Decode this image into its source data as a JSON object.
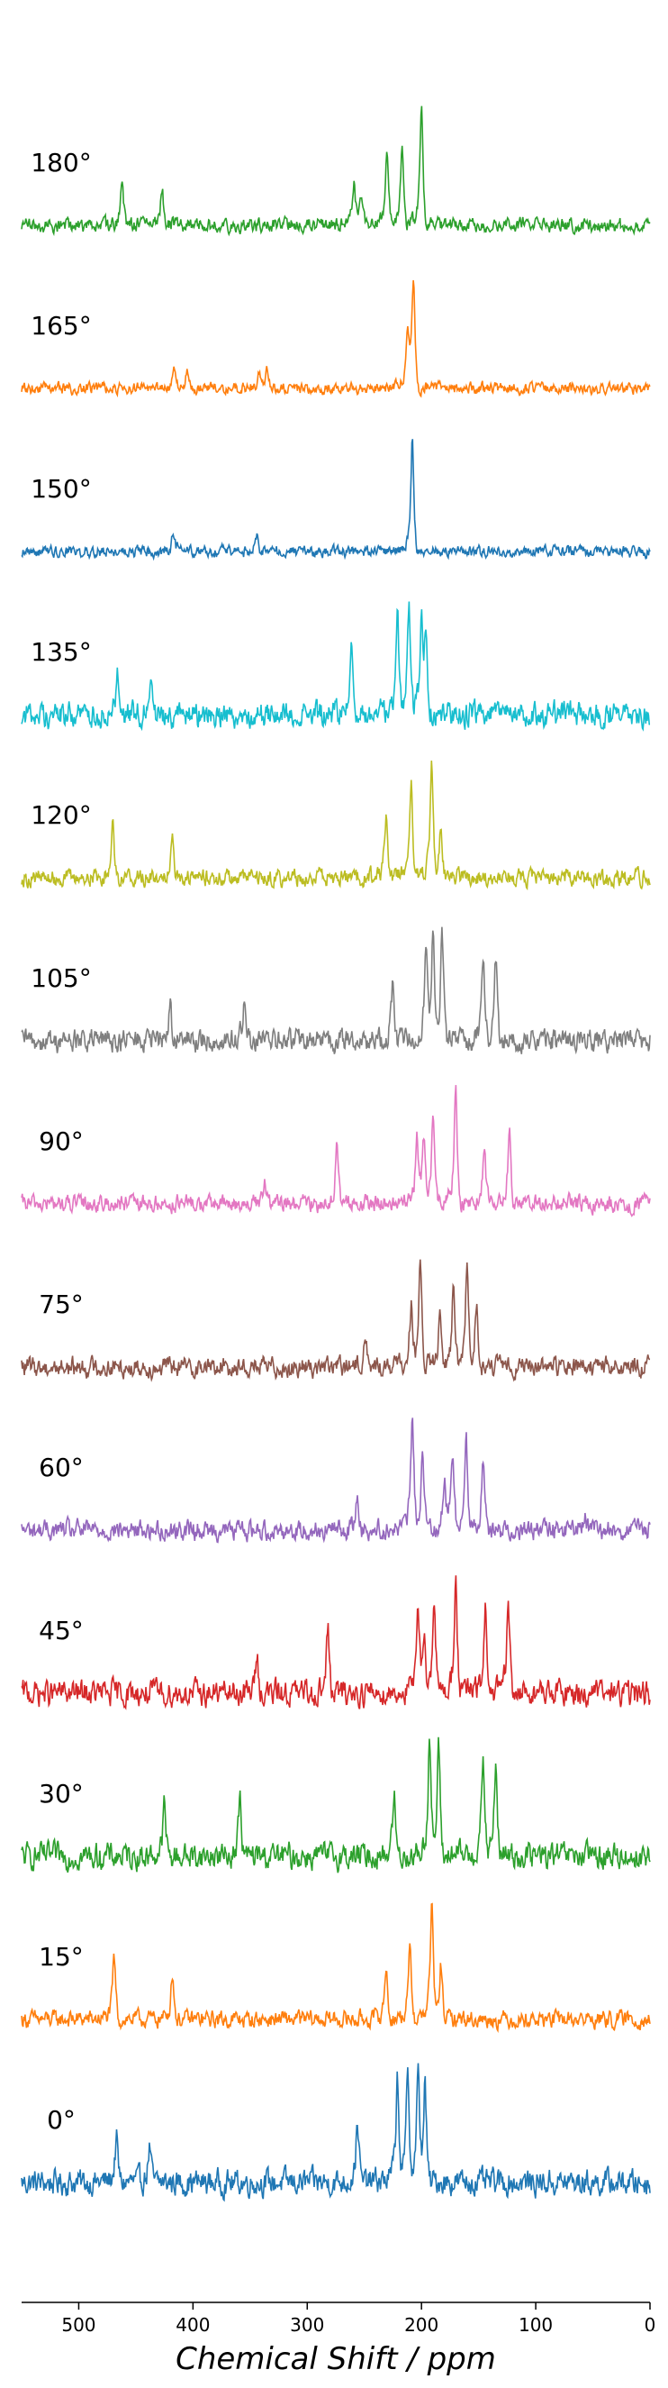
{
  "chart_data": {
    "type": "line",
    "title": "",
    "xlabel": "Chemical Shift / ppm",
    "ylabel": "",
    "xlim": [
      550,
      0
    ],
    "xticks": [
      500,
      400,
      300,
      200,
      100,
      0
    ],
    "grid": false,
    "legend": "none",
    "series": [
      {
        "label": "0°",
        "color": "#1f77b4",
        "noise": 0.09,
        "peaks": [
          [
            467,
            0.38
          ],
          [
            438,
            0.32
          ],
          [
            256,
            0.55
          ],
          [
            221,
            0.9
          ],
          [
            212,
            0.95
          ],
          [
            203,
            0.9
          ],
          [
            197,
            0.88
          ]
        ]
      },
      {
        "label": "15°",
        "color": "#ff7f0e",
        "noise": 0.06,
        "peaks": [
          [
            469,
            0.55
          ],
          [
            418,
            0.42
          ],
          [
            231,
            0.45
          ],
          [
            210,
            0.62
          ],
          [
            191,
            1.0
          ],
          [
            183,
            0.48
          ]
        ]
      },
      {
        "label": "30°",
        "color": "#2ca02c",
        "noise": 0.09,
        "peaks": [
          [
            425,
            0.45
          ],
          [
            359,
            0.5
          ],
          [
            224,
            0.55
          ],
          [
            193,
            1.0
          ],
          [
            185,
            0.95
          ],
          [
            146,
            0.85
          ],
          [
            135,
            0.82
          ]
        ]
      },
      {
        "label": "45°",
        "color": "#d62728",
        "noise": 0.09,
        "peaks": [
          [
            344,
            0.32
          ],
          [
            282,
            0.55
          ],
          [
            203,
            0.6
          ],
          [
            198,
            0.58
          ],
          [
            189,
            0.85
          ],
          [
            170,
            1.0
          ],
          [
            144,
            0.72
          ],
          [
            124,
            0.78
          ]
        ]
      },
      {
        "label": "60°",
        "color": "#9467bd",
        "noise": 0.07,
        "peaks": [
          [
            256,
            0.3
          ],
          [
            208,
            1.0
          ],
          [
            199,
            0.72
          ],
          [
            180,
            0.38
          ],
          [
            173,
            0.72
          ],
          [
            161,
            0.9
          ],
          [
            146,
            0.65
          ],
          [
            57,
            0.15
          ]
        ]
      },
      {
        "label": "75°",
        "color": "#8c564b",
        "noise": 0.07,
        "peaks": [
          [
            249,
            0.28
          ],
          [
            209,
            0.55
          ],
          [
            201,
            0.9
          ],
          [
            184,
            0.4
          ],
          [
            172,
            0.7
          ],
          [
            160,
            0.95
          ],
          [
            152,
            0.55
          ]
        ]
      },
      {
        "label": "90°",
        "color": "#e377c2",
        "noise": 0.06,
        "peaks": [
          [
            337,
            0.18
          ],
          [
            274,
            0.5
          ],
          [
            204,
            0.55
          ],
          [
            198,
            0.58
          ],
          [
            190,
            0.72
          ],
          [
            170,
            1.0
          ],
          [
            145,
            0.55
          ],
          [
            123,
            0.68
          ]
        ]
      },
      {
        "label": "105°",
        "color": "#7f7f7f",
        "noise": 0.08,
        "peaks": [
          [
            420,
            0.32
          ],
          [
            355,
            0.38
          ],
          [
            225,
            0.52
          ],
          [
            196,
            0.8
          ],
          [
            190,
            0.92
          ],
          [
            182,
            0.95
          ],
          [
            146,
            0.75
          ],
          [
            135,
            0.72
          ]
        ]
      },
      {
        "label": "120°",
        "color": "#bcbd22",
        "noise": 0.06,
        "peaks": [
          [
            470,
            0.5
          ],
          [
            418,
            0.45
          ],
          [
            231,
            0.55
          ],
          [
            209,
            0.8
          ],
          [
            191,
            1.0
          ],
          [
            183,
            0.45
          ]
        ]
      },
      {
        "label": "135°",
        "color": "#17becf",
        "noise": 0.09,
        "peaks": [
          [
            466,
            0.45
          ],
          [
            437,
            0.42
          ],
          [
            261,
            0.6
          ],
          [
            221,
            0.82
          ],
          [
            211,
            0.9
          ],
          [
            200,
            0.85
          ],
          [
            196,
            0.82
          ]
        ]
      },
      {
        "label": "150°",
        "color": "#1f77b4",
        "noise": 0.04,
        "peaks": [
          [
            418,
            0.1
          ],
          [
            412,
            0.08
          ],
          [
            344,
            0.12
          ],
          [
            208,
            1.0
          ]
        ]
      },
      {
        "label": "165°",
        "color": "#ff7f0e",
        "noise": 0.04,
        "peaks": [
          [
            416,
            0.15
          ],
          [
            405,
            0.17
          ],
          [
            342,
            0.15
          ],
          [
            335,
            0.15
          ],
          [
            212,
            0.42
          ],
          [
            207,
            1.0
          ]
        ]
      },
      {
        "label": "180°",
        "color": "#2ca02c",
        "noise": 0.05,
        "peaks": [
          [
            462,
            0.38
          ],
          [
            427,
            0.33
          ],
          [
            259,
            0.35
          ],
          [
            253,
            0.3
          ],
          [
            230,
            0.63
          ],
          [
            217,
            0.7
          ],
          [
            200,
            1.0
          ]
        ]
      }
    ]
  }
}
